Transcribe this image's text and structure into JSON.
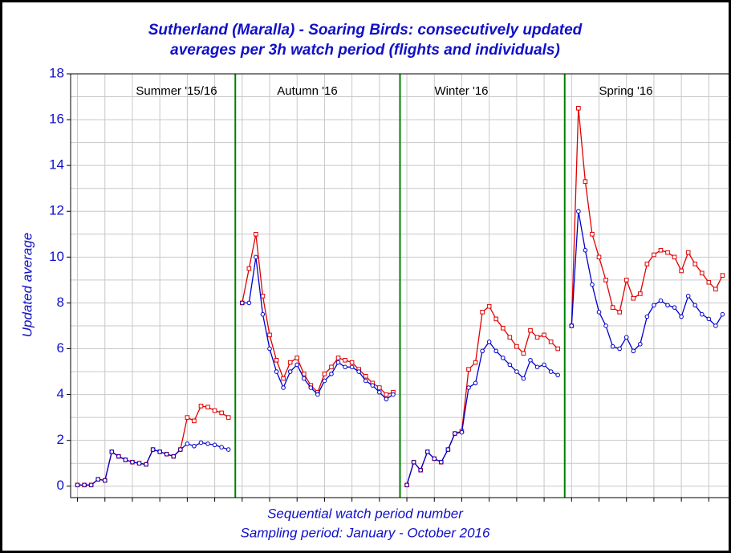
{
  "chart_data": {
    "type": "line",
    "title": [
      "Sutherland (Maralla) - Soaring Birds: consecutively updated",
      "averages per 3h watch period (flights and individuals)"
    ],
    "ylabel": "Updated average",
    "xlabel": [
      "Sequential watch period number",
      "Sampling period: January - October 2016"
    ],
    "annotations": [
      "Summer '15/16",
      "Autumn '16",
      "Winter '16",
      "Spring '16"
    ],
    "separators": [
      23,
      47,
      71
    ],
    "separator_color": "#008000",
    "x": [
      0,
      1,
      2,
      3,
      4,
      5,
      6,
      7,
      8,
      9,
      10,
      11,
      12,
      13,
      14,
      15,
      16,
      17,
      18,
      19,
      20,
      21,
      22,
      23,
      24,
      25,
      26,
      27,
      28,
      29,
      30,
      31,
      32,
      33,
      34,
      35,
      36,
      37,
      38,
      39,
      40,
      41,
      42,
      43,
      44,
      45,
      46,
      47,
      48,
      49,
      50,
      51,
      52,
      53,
      54,
      55,
      56,
      57,
      58,
      59,
      60,
      61,
      62,
      63,
      64,
      65,
      66,
      67,
      68,
      69,
      70,
      71,
      72,
      73,
      74,
      75,
      76,
      77,
      78,
      79,
      80,
      81,
      82,
      83,
      84,
      85,
      86,
      87,
      88,
      89,
      90,
      91,
      92,
      93,
      94
    ],
    "series": [
      {
        "color": "#e00000",
        "marker": "square",
        "values": [
          0.05,
          0.05,
          0.05,
          0.3,
          0.25,
          1.5,
          1.3,
          1.15,
          1.05,
          1.0,
          0.95,
          1.6,
          1.5,
          1.4,
          1.3,
          1.6,
          3.0,
          2.85,
          3.5,
          3.45,
          3.3,
          3.2,
          3.0,
          null,
          8.0,
          9.5,
          11.0,
          8.3,
          6.6,
          5.5,
          4.7,
          5.4,
          5.6,
          4.9,
          4.4,
          4.1,
          4.9,
          5.2,
          5.6,
          5.5,
          5.4,
          5.1,
          4.8,
          4.5,
          4.3,
          4.0,
          4.1,
          null,
          0.05,
          1.05,
          0.7,
          1.5,
          1.2,
          1.05,
          1.6,
          2.3,
          2.4,
          5.1,
          5.4,
          7.6,
          7.85,
          7.3,
          6.9,
          6.5,
          6.1,
          5.8,
          6.8,
          6.5,
          6.6,
          6.3,
          6.0,
          null,
          7.0,
          16.5,
          13.3,
          11.0,
          10.0,
          9.0,
          7.8,
          7.6,
          9.0,
          8.2,
          8.4,
          9.7,
          10.1,
          10.3,
          10.2,
          10.0,
          9.4,
          10.2,
          9.7,
          9.3,
          8.9,
          8.6,
          9.2
        ]
      },
      {
        "color": "#0000cc",
        "marker": "circle",
        "values": [
          0.05,
          0.05,
          0.05,
          0.3,
          0.25,
          1.5,
          1.3,
          1.15,
          1.05,
          1.0,
          0.95,
          1.6,
          1.5,
          1.4,
          1.3,
          1.6,
          1.85,
          1.75,
          1.9,
          1.85,
          1.8,
          1.7,
          1.6,
          null,
          8.0,
          8.0,
          10.0,
          7.5,
          6.0,
          5.0,
          4.3,
          5.0,
          5.3,
          4.7,
          4.3,
          4.0,
          4.6,
          4.9,
          5.4,
          5.2,
          5.2,
          5.0,
          4.6,
          4.4,
          4.1,
          3.8,
          4.0,
          null,
          0.05,
          1.05,
          0.7,
          1.5,
          1.2,
          1.05,
          1.6,
          2.3,
          2.35,
          4.3,
          4.5,
          5.9,
          6.3,
          5.9,
          5.6,
          5.3,
          5.0,
          4.7,
          5.5,
          5.2,
          5.3,
          5.0,
          4.85,
          null,
          7.0,
          12.0,
          10.3,
          8.8,
          7.6,
          7.0,
          6.1,
          6.0,
          6.5,
          5.9,
          6.2,
          7.4,
          7.9,
          8.1,
          7.9,
          7.8,
          7.4,
          8.3,
          7.9,
          7.5,
          7.3,
          7.0,
          7.5
        ]
      }
    ],
    "xlim": [
      -1,
      95
    ],
    "xticks": [
      0,
      4,
      8,
      12,
      16,
      20,
      24,
      28,
      32,
      36,
      40,
      44,
      48,
      52,
      56,
      60,
      64,
      68,
      72,
      76,
      80,
      84,
      88,
      92
    ],
    "xtick_labels": false,
    "ylim": [
      -0.5,
      18
    ],
    "yticks": [
      0,
      2,
      4,
      6,
      8,
      10,
      12,
      14,
      16,
      18
    ],
    "yminorticks": [
      1,
      3,
      5,
      7,
      9,
      11,
      13,
      15,
      17
    ],
    "grid": true
  }
}
